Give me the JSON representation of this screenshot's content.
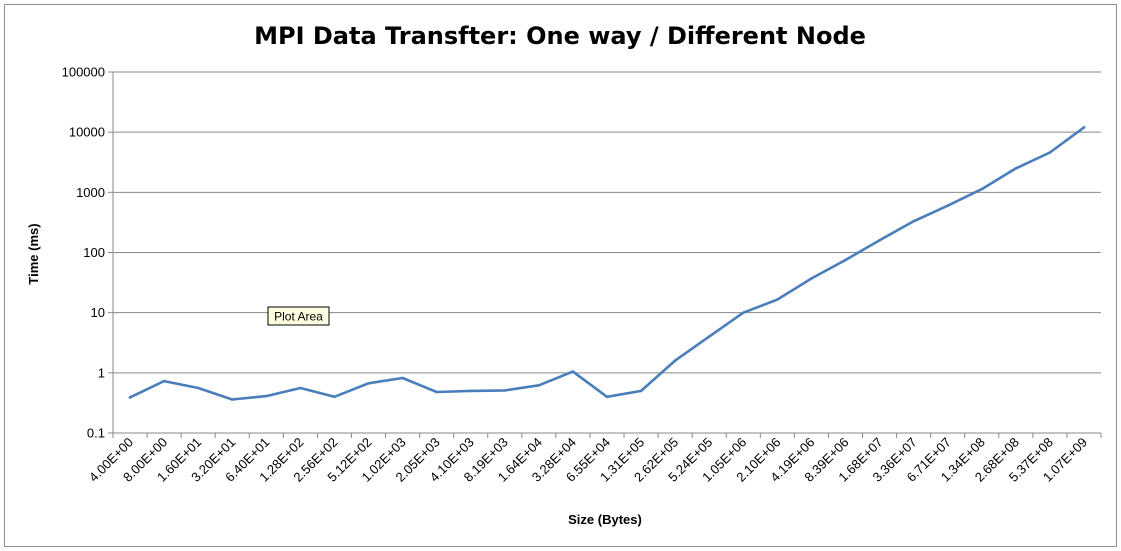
{
  "chart_data": {
    "type": "line",
    "title": "MPI Data Transfter: One way / Different Node",
    "xlabel": "Size (Bytes)",
    "ylabel": "Time (ms)",
    "yscale": "log",
    "ylim": [
      0.1,
      100000
    ],
    "yticks": [
      "0.1",
      "1",
      "10",
      "100",
      "1000",
      "10000",
      "100000"
    ],
    "grid": true,
    "legend": "none",
    "categories": [
      "4.00E+00",
      "8.00E+00",
      "1.60E+01",
      "3.20E+01",
      "6.40E+01",
      "1.28E+02",
      "2.56E+02",
      "5.12E+02",
      "1.02E+03",
      "2.05E+03",
      "4.10E+03",
      "8.19E+03",
      "1.64E+04",
      "3.28E+04",
      "6.55E+04",
      "1.31E+05",
      "2.62E+05",
      "5.24E+05",
      "1.05E+06",
      "2.10E+06",
      "4.19E+06",
      "8.39E+06",
      "1.68E+07",
      "3.36E+07",
      "6.71E+07",
      "1.34E+08",
      "2.68E+08",
      "5.37E+08",
      "1.07E+09"
    ],
    "series": [
      {
        "color": "#4a7ebb",
        "values": [
          0.39,
          0.73,
          0.56,
          0.36,
          0.41,
          0.56,
          0.4,
          0.67,
          0.82,
          0.48,
          0.5,
          0.51,
          0.62,
          1.05,
          0.4,
          0.5,
          1.6,
          4.0,
          10.0,
          16.5,
          37.0,
          75.0,
          160.0,
          330.0,
          600.0,
          1130.0,
          2500.0,
          4600.0,
          12000.0
        ]
      }
    ]
  },
  "tooltip": {
    "label": "Plot Area"
  },
  "colors": {
    "grid": "#8a8a8a",
    "frame": "#8e8e8e",
    "tooltip_bg": "#ffffe1"
  }
}
